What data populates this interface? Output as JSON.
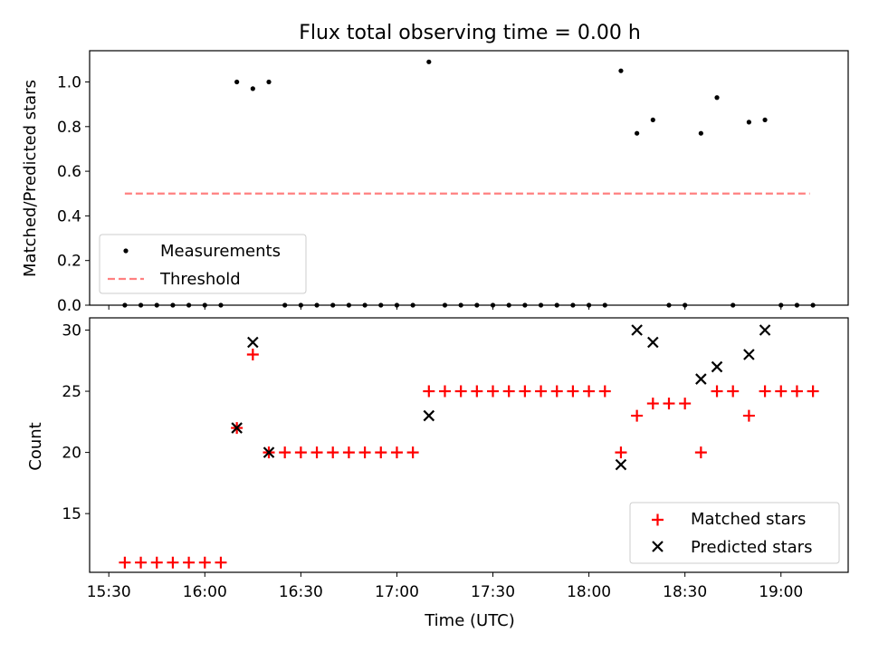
{
  "chart_data": [
    {
      "type": "scatter",
      "title": "Flux total observing time = 0.00 h",
      "xlabel": "",
      "ylabel": "Matched/Predicted stars",
      "xlim": [
        "15:24",
        "19:21"
      ],
      "ylim": [
        0,
        1.14
      ],
      "yticks": [
        "0.0",
        "0.2",
        "0.4",
        "0.6",
        "0.8",
        "1.0"
      ],
      "legend": {
        "position": "lower-left",
        "entries": [
          "Measurements",
          "Threshold"
        ]
      },
      "colors": {
        "measurements": "#000000",
        "threshold": "#ff8080"
      },
      "grid": false,
      "series": [
        {
          "name": "Measurements",
          "marker": "dot",
          "x": [
            "15:35",
            "15:40",
            "15:45",
            "15:50",
            "15:55",
            "16:00",
            "16:05",
            "16:10",
            "16:15",
            "16:20",
            "16:25",
            "16:30",
            "16:35",
            "16:40",
            "16:45",
            "16:50",
            "16:55",
            "17:00",
            "17:05",
            "17:10",
            "17:15",
            "17:20",
            "17:25",
            "17:30",
            "17:35",
            "17:40",
            "17:45",
            "17:50",
            "17:55",
            "18:00",
            "18:05",
            "18:10",
            "18:15",
            "18:20",
            "18:25",
            "18:30",
            "18:35",
            "18:40",
            "18:45",
            "18:50",
            "18:55",
            "19:00",
            "19:05",
            "19:10"
          ],
          "y": [
            0,
            0,
            0,
            0,
            0,
            0,
            0,
            1.0,
            0.97,
            1.0,
            0,
            0,
            0,
            0,
            0,
            0,
            0,
            0,
            0,
            1.09,
            0,
            0,
            0,
            0,
            0,
            0,
            0,
            0,
            0,
            0,
            0,
            1.05,
            0.77,
            0.83,
            0,
            0,
            0.77,
            0.93,
            0,
            0.82,
            0.83,
            0,
            0,
            0
          ]
        },
        {
          "name": "Threshold",
          "line": "dashed",
          "x": [
            "15:35",
            "19:09"
          ],
          "y": [
            0.5,
            0.5
          ]
        }
      ]
    },
    {
      "type": "scatter",
      "title": "",
      "xlabel": "Time (UTC)",
      "ylabel": "Count",
      "xlim": [
        "15:24",
        "19:21"
      ],
      "ylim": [
        10.2,
        31
      ],
      "yticks": [
        "15",
        "20",
        "25",
        "30"
      ],
      "xticks": [
        "15:30",
        "16:00",
        "16:30",
        "17:00",
        "17:30",
        "18:00",
        "18:30",
        "19:00"
      ],
      "legend": {
        "position": "lower-right",
        "entries": [
          "Matched stars",
          "Predicted stars"
        ]
      },
      "colors": {
        "matched": "#ff0000",
        "predicted": "#000000"
      },
      "grid": false,
      "series": [
        {
          "name": "Matched stars",
          "marker": "plus",
          "x": [
            "15:35",
            "15:40",
            "15:45",
            "15:50",
            "15:55",
            "16:00",
            "16:05",
            "16:10",
            "16:15",
            "16:20",
            "16:25",
            "16:30",
            "16:35",
            "16:40",
            "16:45",
            "16:50",
            "16:55",
            "17:00",
            "17:05",
            "17:10",
            "17:15",
            "17:20",
            "17:25",
            "17:30",
            "17:35",
            "17:40",
            "17:45",
            "17:50",
            "17:55",
            "18:00",
            "18:05",
            "18:10",
            "18:15",
            "18:20",
            "18:25",
            "18:30",
            "18:35",
            "18:40",
            "18:45",
            "18:50",
            "18:55",
            "19:00",
            "19:05",
            "19:10"
          ],
          "y": [
            11,
            11,
            11,
            11,
            11,
            11,
            11,
            22,
            28,
            20,
            20,
            20,
            20,
            20,
            20,
            20,
            20,
            20,
            20,
            25,
            25,
            25,
            25,
            25,
            25,
            25,
            25,
            25,
            25,
            25,
            25,
            20,
            23,
            24,
            24,
            24,
            20,
            25,
            25,
            23,
            25,
            25,
            25,
            25
          ]
        },
        {
          "name": "Predicted stars",
          "marker": "x",
          "x": [
            "16:10",
            "16:15",
            "16:20",
            "17:10",
            "18:10",
            "18:15",
            "18:20",
            "18:35",
            "18:40",
            "18:50",
            "18:55"
          ],
          "y": [
            22,
            29,
            20,
            23,
            19,
            30,
            29,
            26,
            27,
            28,
            30
          ]
        }
      ]
    }
  ]
}
